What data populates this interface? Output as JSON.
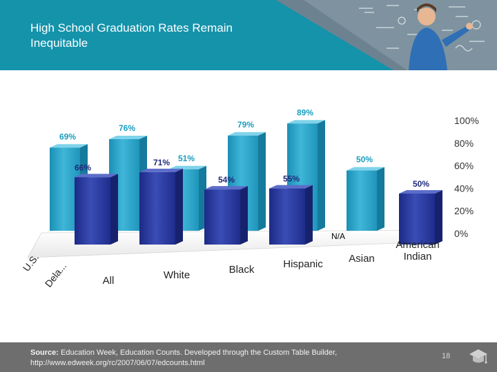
{
  "slide": {
    "title": "High School Graduation Rates Remain Inequitable",
    "source_label": "Source:",
    "source_text": "Education Week, Education Counts. Developed through the Custom Table Builder,",
    "source_url": "http://www.edweek.org/rc/2007/06/07/edcounts.html",
    "page_number": "18"
  },
  "colors": {
    "header": "#1593ab",
    "series_front": "#2a3a9e",
    "series_back": "#2ba6c8",
    "label_front": "#1f2a7a",
    "label_back": "#1a9ec0",
    "footer": "#6e6e6e"
  },
  "chart_data": {
    "type": "bar",
    "subtype": "3d-clustered",
    "categories": [
      "All",
      "White",
      "Black",
      "Hispanic",
      "Asian",
      "American Indian"
    ],
    "series": [
      {
        "name": "U.S.",
        "values": [
          69,
          76,
          51,
          79,
          89,
          50
        ],
        "labels": [
          "69%",
          "76%",
          "51%",
          "79%",
          "89%",
          "50%"
        ]
      },
      {
        "name": "Dela...",
        "values": [
          66,
          71,
          54,
          55,
          null,
          50
        ],
        "labels": [
          "66%",
          "71%",
          "54%",
          "55%",
          "N/A",
          "50%"
        ]
      }
    ],
    "ylim": [
      0,
      100
    ],
    "yticks": [
      "0%",
      "20%",
      "40%",
      "60%",
      "80%",
      "100%"
    ],
    "grid": false,
    "title": "",
    "xlabel": "",
    "ylabel": ""
  }
}
